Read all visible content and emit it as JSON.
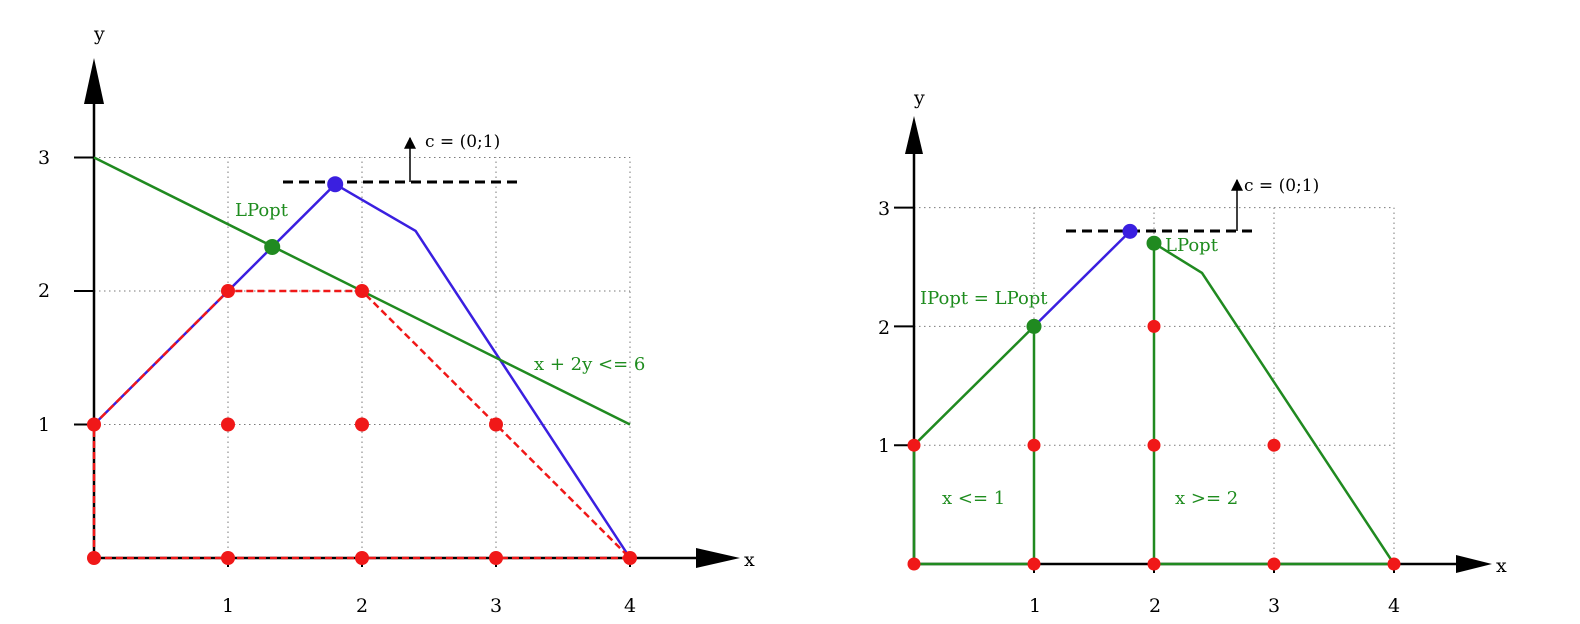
{
  "left": {
    "x_axis_label": "x",
    "y_axis_label": "y",
    "x_ticks": [
      "1",
      "2",
      "3",
      "4"
    ],
    "y_ticks": [
      "1",
      "2",
      "3"
    ],
    "constraint_label": "x + 2y <= 6",
    "lp_opt_label": "LPopt",
    "objective_label": "c = (0;1)",
    "lp_relaxation_polygon": [
      [
        0,
        0
      ],
      [
        0,
        1
      ],
      [
        1.8,
        2.8
      ],
      [
        2.4,
        2.45
      ],
      [
        4,
        0
      ]
    ],
    "constraint_line": [
      [
        0,
        3
      ],
      [
        4,
        1
      ]
    ],
    "integer_hull": [
      [
        0,
        0
      ],
      [
        0,
        1
      ],
      [
        1,
        2
      ],
      [
        2,
        2
      ],
      [
        4,
        0
      ]
    ],
    "lp_opt_point": [
      1.33,
      2.33
    ],
    "blue_opt_point": [
      1.8,
      2.8
    ],
    "integer_points": [
      [
        0,
        0
      ],
      [
        1,
        0
      ],
      [
        2,
        0
      ],
      [
        3,
        0
      ],
      [
        4,
        0
      ],
      [
        0,
        1
      ],
      [
        1,
        1
      ],
      [
        2,
        1
      ],
      [
        3,
        1
      ],
      [
        1,
        2
      ],
      [
        2,
        2
      ]
    ],
    "colors": {
      "blue": "#3a1fe0",
      "green": "#208a20",
      "red": "#f01818"
    }
  },
  "right": {
    "x_axis_label": "x",
    "y_axis_label": "y",
    "x_ticks": [
      "1",
      "2",
      "3",
      "4"
    ],
    "y_ticks": [
      "1",
      "2",
      "3"
    ],
    "lp_opt_label": "LPopt",
    "ip_opt_label": "IPopt = LPopt",
    "objective_label": "c = (0;1)",
    "branch_left_label": "x <= 1",
    "branch_right_label": "x >= 2",
    "left_subproblem": [
      [
        0,
        0
      ],
      [
        0,
        1
      ],
      [
        1,
        2
      ],
      [
        1,
        0
      ]
    ],
    "right_subproblem": [
      [
        2,
        0
      ],
      [
        2,
        2.7
      ],
      [
        2.4,
        2.45
      ],
      [
        4,
        0
      ]
    ],
    "blue_segment": [
      [
        1,
        2
      ],
      [
        1.8,
        2.8
      ]
    ],
    "blue_opt_point": [
      1.8,
      2.8
    ],
    "ip_opt_point": [
      1,
      2
    ],
    "lp_opt_point": [
      2,
      2.7
    ],
    "integer_points": [
      [
        0,
        0
      ],
      [
        1,
        0
      ],
      [
        2,
        0
      ],
      [
        3,
        0
      ],
      [
        4,
        0
      ],
      [
        0,
        1
      ],
      [
        1,
        1
      ],
      [
        2,
        1
      ],
      [
        3,
        1
      ],
      [
        2,
        2
      ]
    ]
  }
}
